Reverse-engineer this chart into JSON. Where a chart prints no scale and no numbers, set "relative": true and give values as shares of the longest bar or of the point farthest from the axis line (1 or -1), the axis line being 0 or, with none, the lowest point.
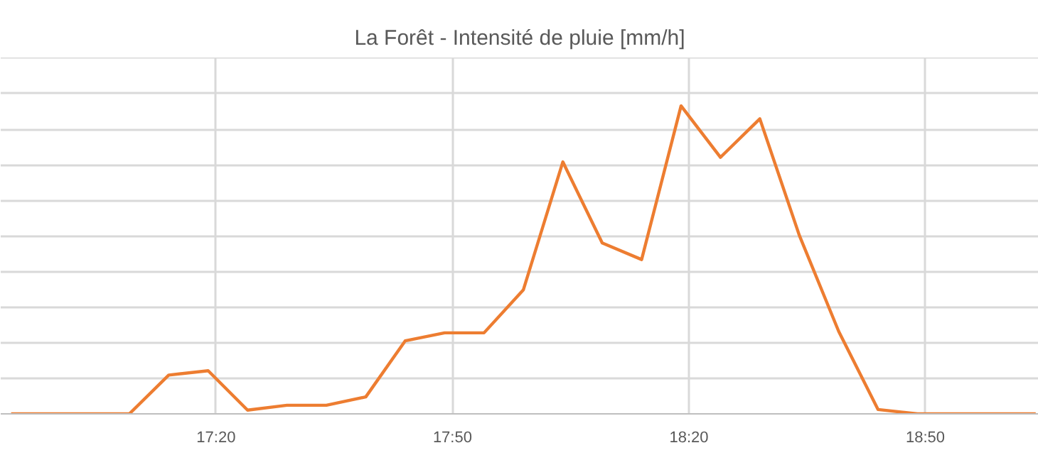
{
  "chart_data": {
    "type": "line",
    "title": "La Forêt - Intensité de pluie [mm/h]",
    "relative": true,
    "x": [
      16.9,
      16.9833,
      17.0667,
      17.15,
      17.2333,
      17.3167,
      17.4,
      17.4833,
      17.5667,
      17.65,
      17.7333,
      17.8167,
      17.9,
      17.9833,
      18.0667,
      18.15,
      18.2333,
      18.3167,
      18.4,
      18.4833,
      18.5667,
      18.65,
      18.7333,
      18.8167,
      18.9,
      18.9833,
      19.0667
    ],
    "series": [
      {
        "color": "#ed7d31",
        "values": [
          0,
          0,
          0,
          0,
          0.126,
          0.14,
          0.012,
          0.028,
          0.028,
          0.055,
          0.237,
          0.263,
          0.263,
          0.403,
          0.818,
          0.555,
          0.501,
          1,
          0.833,
          0.958,
          0.58,
          0.268,
          0.014,
          0,
          0,
          0,
          0
        ]
      }
    ],
    "xlim": [
      16.878,
      19.073
    ],
    "xticks": [
      {
        "value": 17.3333,
        "label": "17:20"
      },
      {
        "value": 17.8333,
        "label": "17:50"
      },
      {
        "value": 18.3333,
        "label": "18:20"
      },
      {
        "value": 18.8333,
        "label": "18:50"
      }
    ],
    "grid": true,
    "marker": "none",
    "line_style": "solid"
  }
}
